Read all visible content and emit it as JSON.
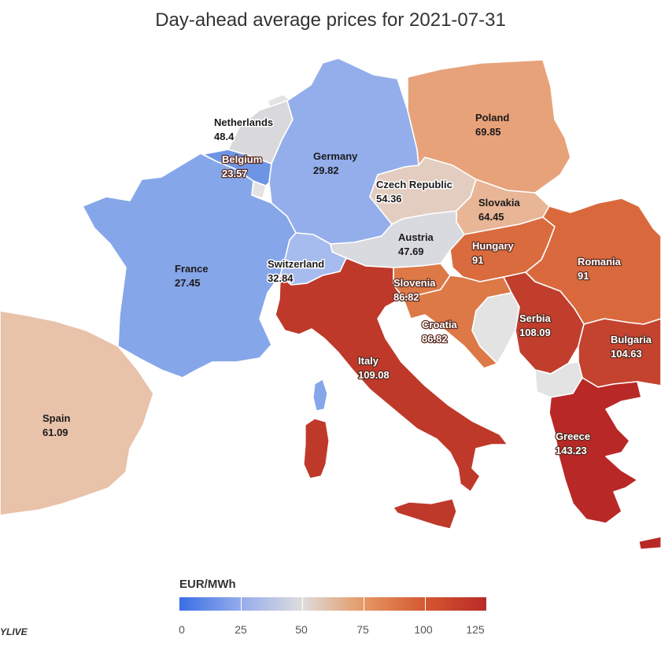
{
  "title": "Day-ahead average prices for 2021-07-31",
  "legend": {
    "title": "EUR/MWh",
    "ticks": [
      "0",
      "25",
      "50",
      "75",
      "100",
      "125"
    ],
    "colors": [
      "#3a6ee6",
      "#95acec",
      "#dddddd",
      "#e59864",
      "#d55832",
      "#b82a26"
    ]
  },
  "countries": {
    "netherlands": {
      "name": "Netherlands",
      "value": "48.4",
      "color": "#d9d9dc"
    },
    "belgium": {
      "name": "Belgium",
      "value": "23.57",
      "color": "#6e94e6"
    },
    "germany": {
      "name": "Germany",
      "value": "29.82",
      "color": "#94aeec"
    },
    "poland": {
      "name": "Poland",
      "value": "69.85",
      "color": "#e7a27a"
    },
    "czech": {
      "name": "Czech Republic",
      "value": "54.36",
      "color": "#e3cdc0"
    },
    "slovakia": {
      "name": "Slovakia",
      "value": "64.45",
      "color": "#e8b596"
    },
    "austria": {
      "name": "Austria",
      "value": "47.69",
      "color": "#d9dae0"
    },
    "switzerland": {
      "name": "Switzerland",
      "value": "32.84",
      "color": "#a6bbee"
    },
    "france": {
      "name": "France",
      "value": "27.45",
      "color": "#86a6ea"
    },
    "hungary": {
      "name": "Hungary",
      "value": "91",
      "color": "#d96b3e"
    },
    "romania": {
      "name": "Romania",
      "value": "91",
      "color": "#d9693d"
    },
    "slovenia": {
      "name": "Slovenia",
      "value": "86.82",
      "color": "#dc7947"
    },
    "croatia": {
      "name": "Croatia",
      "value": "86.82",
      "color": "#dc7947"
    },
    "serbia": {
      "name": "Serbia",
      "value": "108.09",
      "color": "#c13d2c"
    },
    "bulgaria": {
      "name": "Bulgaria",
      "value": "104.63",
      "color": "#c4432f"
    },
    "italy": {
      "name": "Italy",
      "value": "109.08",
      "color": "#bf392b"
    },
    "greece": {
      "name": "Greece",
      "value": "143.23",
      "color": "#b82826"
    },
    "spain": {
      "name": "Spain",
      "value": "61.09",
      "color": "#e9c2aa"
    }
  },
  "neighbors_color": "#e3e3e3",
  "logo_text": "YLIVE"
}
